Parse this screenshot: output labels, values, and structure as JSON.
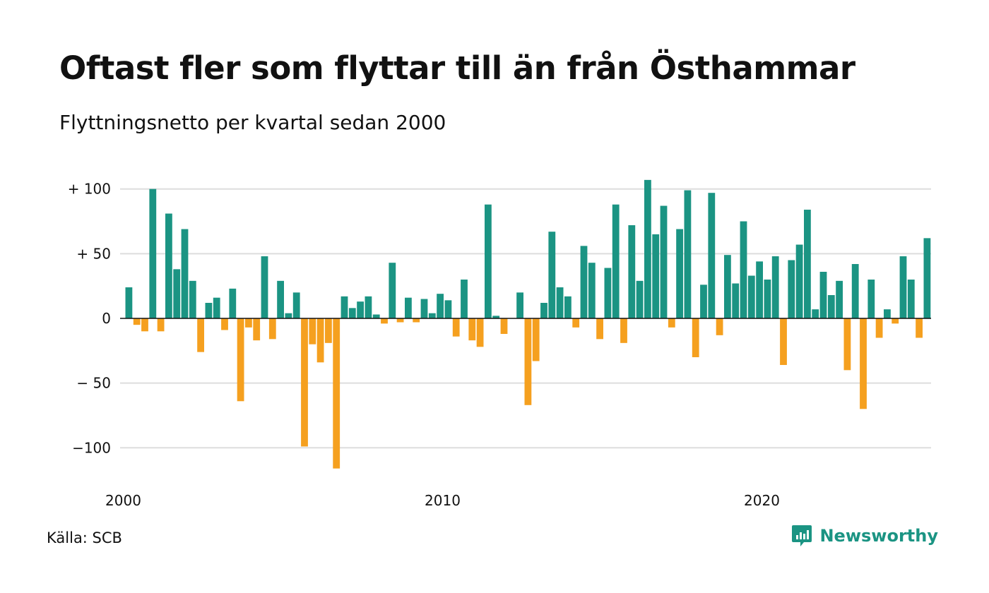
{
  "header": {
    "title": "Oftast fler som flyttar till än från Östhammar",
    "subtitle": "Flyttningsnetto per kvartal sedan 2000"
  },
  "footer": {
    "source": "Källa: SCB",
    "brand": "Newsworthy"
  },
  "colors": {
    "positive": "#1b9483",
    "negative": "#f5a01f",
    "grid": "#dddddd",
    "zero_line": "#111111"
  },
  "chart_data": {
    "type": "bar",
    "x_start": "2000-Q1",
    "x_interval": "quarter",
    "y_ticks": [
      {
        "value": 100,
        "label": "+ 100"
      },
      {
        "value": 50,
        "label": "+  50"
      },
      {
        "value": 0,
        "label": "0"
      },
      {
        "value": -50,
        "label": "− 50"
      },
      {
        "value": -100,
        "label": "−100"
      }
    ],
    "x_ticks": [
      "2000",
      "2010",
      "2020"
    ],
    "ylim": [
      -118,
      110
    ],
    "grid": true,
    "values": [
      24,
      -5,
      -10,
      100,
      -10,
      81,
      38,
      69,
      29,
      -26,
      12,
      16,
      -9,
      23,
      -64,
      -7,
      -17,
      48,
      -16,
      29,
      4,
      20,
      -99,
      -20,
      -34,
      -19,
      -116,
      17,
      8,
      13,
      17,
      3,
      -4,
      43,
      -3,
      16,
      -3,
      15,
      4,
      19,
      14,
      -14,
      30,
      -17,
      -22,
      88,
      2,
      -12,
      0,
      20,
      -67,
      -33,
      12,
      67,
      24,
      17,
      -7,
      56,
      43,
      -16,
      39,
      88,
      -19,
      72,
      29,
      107,
      65,
      87,
      -7,
      69,
      99,
      -30,
      26,
      97,
      -13,
      49,
      27,
      75,
      33,
      44,
      30,
      48,
      -36,
      45,
      57,
      84,
      7,
      36,
      18,
      29,
      -40,
      42,
      -70,
      30,
      -15,
      7,
      -4,
      48,
      30,
      -15,
      62
    ]
  }
}
